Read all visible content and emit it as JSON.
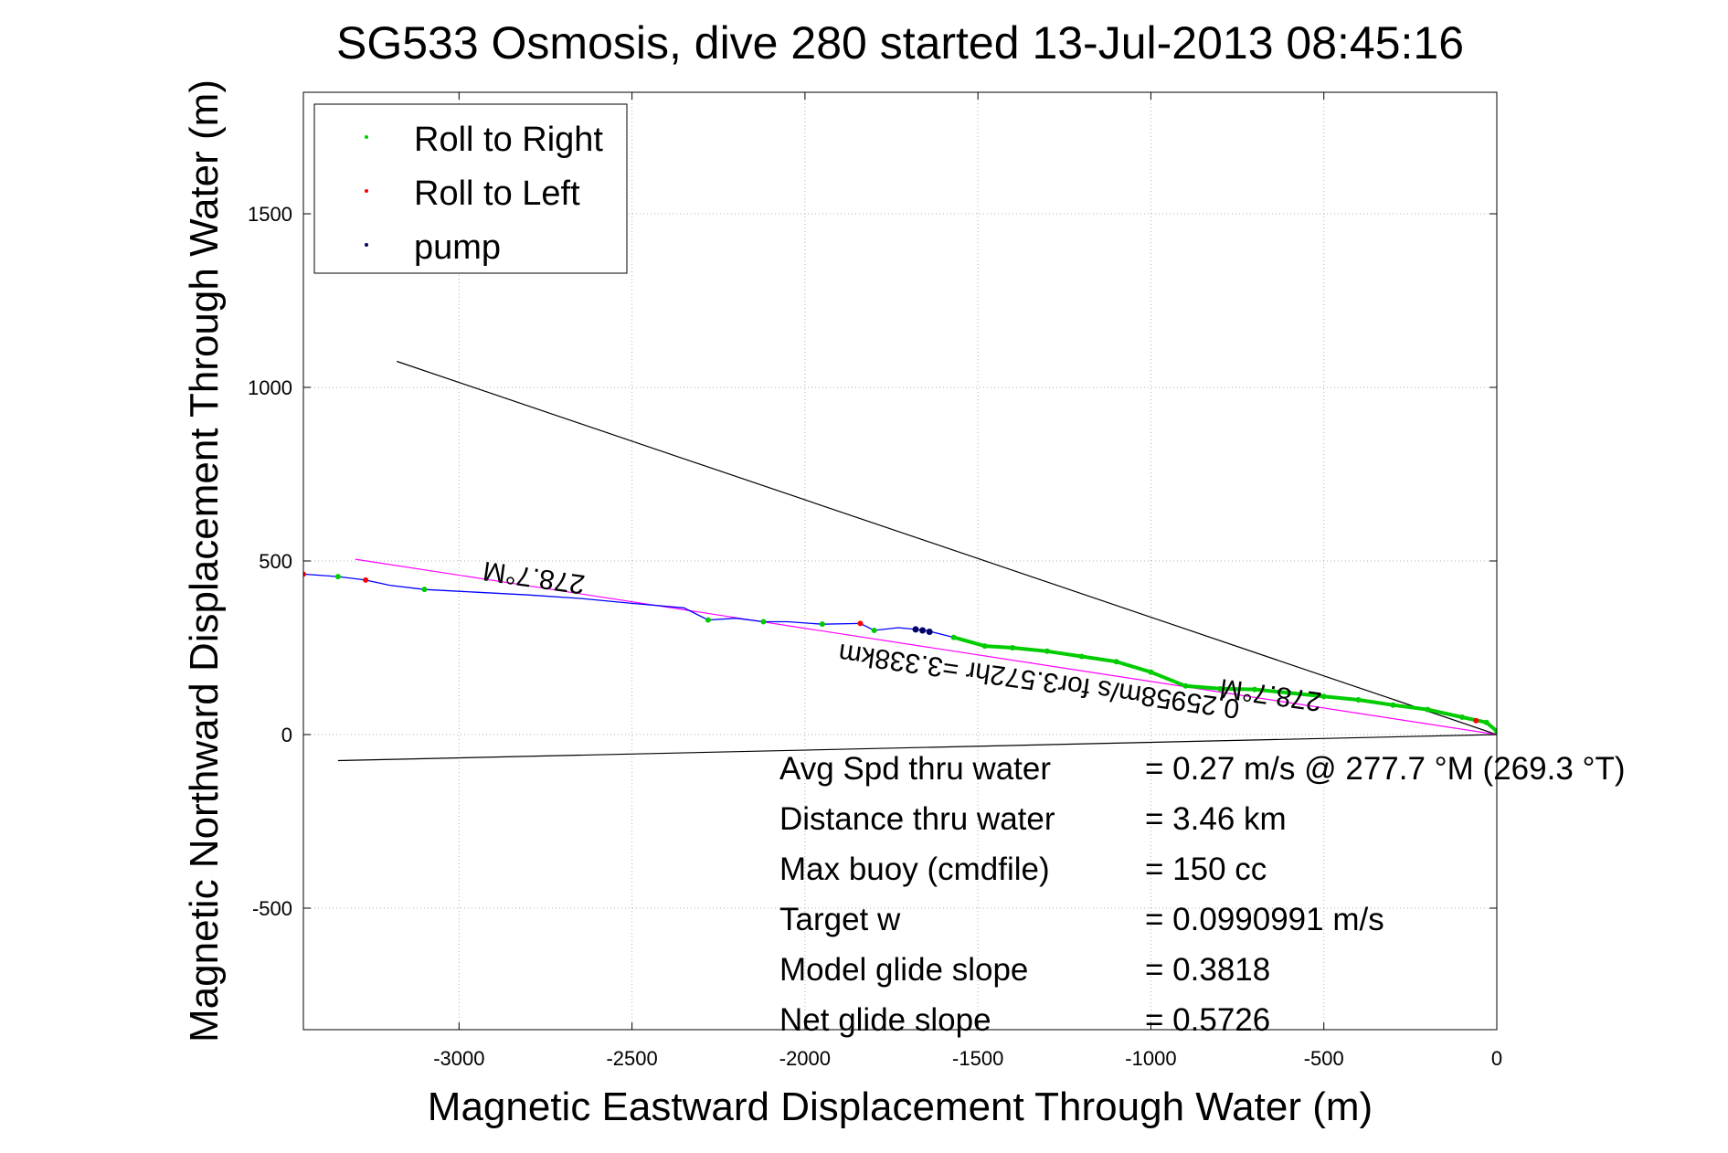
{
  "chart_data": {
    "type": "scatter",
    "title": "SG533 Osmosis, dive 280 started 13-Jul-2013 08:45:16",
    "xlabel": "Magnetic Eastward Displacement Through Water (m)",
    "ylabel": "Magnetic Northward Displacement Through Water (m)",
    "xlim": [
      -3450,
      0
    ],
    "ylim": [
      -850,
      1850
    ],
    "xticks": [
      -3000,
      -2500,
      -2000,
      -1500,
      -1000,
      -500,
      0
    ],
    "yticks": [
      -500,
      0,
      500,
      1000,
      1500
    ],
    "grid": true,
    "legend_position": "top-left",
    "legend": [
      {
        "label": "Roll to Right",
        "color": "#00cc00"
      },
      {
        "label": "Roll to Left",
        "color": "#ff0000"
      },
      {
        "label": "pump",
        "color": "#000066"
      }
    ],
    "track": {
      "color": "#0000ff",
      "x": [
        -3450,
        -3350,
        -3270,
        -3200,
        -3100,
        -2950,
        -2800,
        -2650,
        -2500,
        -2350,
        -2280,
        -2200,
        -2120,
        -2050,
        -1950,
        -1840,
        -1800,
        -1730,
        -1650,
        -1570,
        -1480,
        -1400,
        -1300,
        -1200,
        -1100,
        -1000,
        -900,
        -800,
        -700,
        -600,
        -500,
        -400,
        -300,
        -200,
        -100,
        -30,
        0
      ],
      "y": [
        462,
        455,
        445,
        430,
        418,
        410,
        402,
        392,
        378,
        365,
        330,
        335,
        325,
        325,
        318,
        320,
        300,
        308,
        300,
        280,
        255,
        250,
        240,
        225,
        210,
        180,
        140,
        132,
        130,
        120,
        110,
        100,
        85,
        72,
        50,
        35,
        10
      ]
    },
    "roll_right": {
      "x": [
        -3350,
        -3100,
        -2280,
        -2120,
        -1950,
        -1800,
        -1570,
        -1480,
        -1400,
        -1300,
        -1200,
        -1100,
        -1000,
        -900,
        -800,
        -700,
        -600,
        -500,
        -400,
        -300,
        -200,
        -100,
        -30,
        0
      ],
      "y": [
        455,
        418,
        330,
        325,
        318,
        300,
        280,
        255,
        250,
        240,
        225,
        210,
        180,
        140,
        132,
        130,
        120,
        110,
        100,
        85,
        72,
        50,
        35,
        10
      ]
    },
    "roll_left": {
      "x": [
        -3450,
        -3270,
        -1840,
        -1660,
        -60
      ],
      "y": [
        462,
        445,
        320,
        300,
        40
      ]
    },
    "pump": {
      "x": [
        -1680,
        -1660,
        -1640
      ],
      "y": [
        303,
        300,
        296
      ]
    },
    "lines": [
      {
        "name": "cone-upper",
        "color": "#000000",
        "x": [
          0,
          -3180
        ],
        "y": [
          0,
          1075
        ]
      },
      {
        "name": "cone-lower",
        "color": "#000000",
        "x": [
          0,
          -3350
        ],
        "y": [
          0,
          -75
        ]
      },
      {
        "name": "heading",
        "color": "#ff00ff",
        "x": [
          0,
          -3300
        ],
        "y": [
          0,
          505
        ]
      }
    ],
    "annotations": [
      {
        "text": "278.7°M",
        "x": -2780,
        "y": 478,
        "rotate": 188
      },
      {
        "text": "278.7°M",
        "x": -650,
        "y": 140,
        "rotate": 188
      },
      {
        "text": "0.25958m/s for3.572hr =3.338km",
        "x": -1320,
        "y": 180,
        "rotate": 188
      }
    ],
    "stats": [
      {
        "label": "Avg Spd thru water",
        "value": "=  0.27 m/s @ 277.7 °M (269.3 °T)"
      },
      {
        "label": "Distance thru water",
        "value": "=  3.46 km"
      },
      {
        "label": "Max buoy (cmdfile)",
        "value": "= 150 cc"
      },
      {
        "label": "Target w",
        "value": "= 0.0990991 m/s"
      },
      {
        "label": "Model glide slope",
        "value": "= 0.3818"
      },
      {
        "label": "Net glide slope",
        "value": "= 0.5726"
      }
    ]
  }
}
